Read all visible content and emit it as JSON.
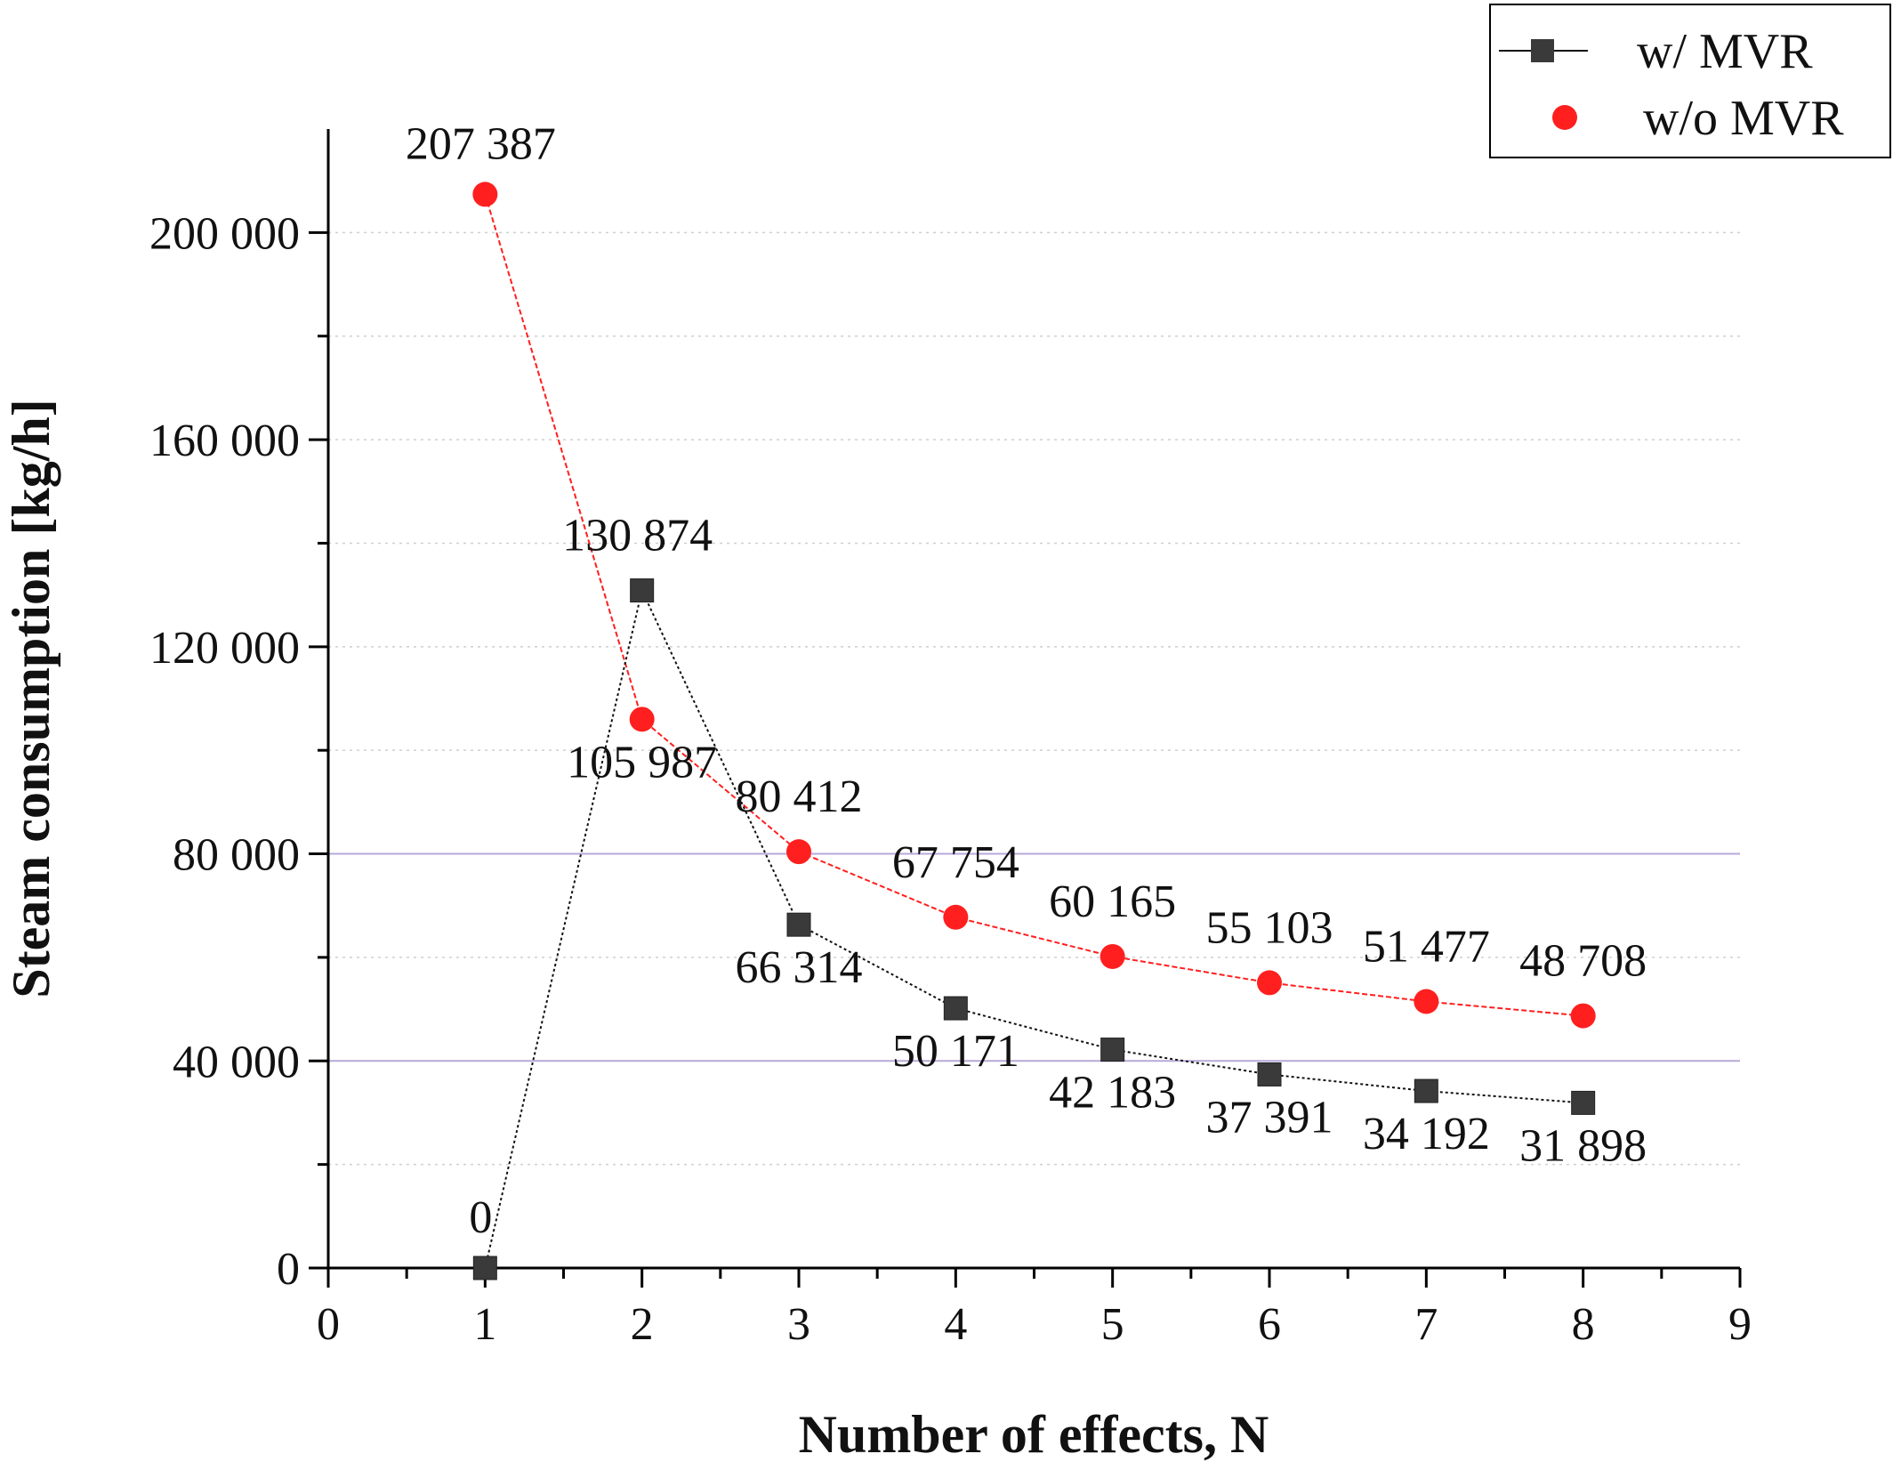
{
  "chart_data": {
    "type": "line",
    "title": "",
    "xlabel": "Number of effects, N",
    "ylabel": "Steam consumption [kg/h]",
    "xlim": [
      0,
      9
    ],
    "ylim": [
      0,
      220000
    ],
    "x_ticks": [
      0,
      1,
      2,
      3,
      4,
      5,
      6,
      7,
      8,
      9
    ],
    "x_tick_labels": [
      "0",
      "1",
      "2",
      "3",
      "4",
      "5",
      "6",
      "7",
      "8",
      "9"
    ],
    "y_ticks": [
      0,
      40000,
      80000,
      120000,
      160000,
      200000
    ],
    "y_tick_labels": [
      "0",
      "40 000",
      "80 000",
      "120 000",
      "160 000",
      "200 000"
    ],
    "y_minor_ticks": [
      20000,
      60000,
      100000,
      140000,
      180000
    ],
    "grid": "horizontal dotted at major and minor ticks; solid lavender at 40 000 and 80 000",
    "legend_position": "top-right",
    "series": [
      {
        "name": "w/ MVR",
        "marker": "square",
        "color": "#3a3a3a",
        "x": [
          1,
          2,
          3,
          4,
          5,
          6,
          7,
          8
        ],
        "y": [
          0,
          130874,
          66314,
          50171,
          42183,
          37391,
          34192,
          31898
        ],
        "labels": [
          "0",
          "130 874",
          "66 314",
          "50 171",
          "42 183",
          "37 391",
          "34 192",
          "31 898"
        ]
      },
      {
        "name": "w/o MVR",
        "marker": "circle",
        "color": "#ff1f1f",
        "x": [
          1,
          2,
          3,
          4,
          5,
          6,
          7,
          8
        ],
        "y": [
          207387,
          105987,
          80412,
          67754,
          60165,
          55103,
          51477,
          48708
        ],
        "labels": [
          "207 387",
          "105 987",
          "80 412",
          "67 754",
          "60 165",
          "55 103",
          "51 477",
          "48 708"
        ]
      }
    ]
  }
}
